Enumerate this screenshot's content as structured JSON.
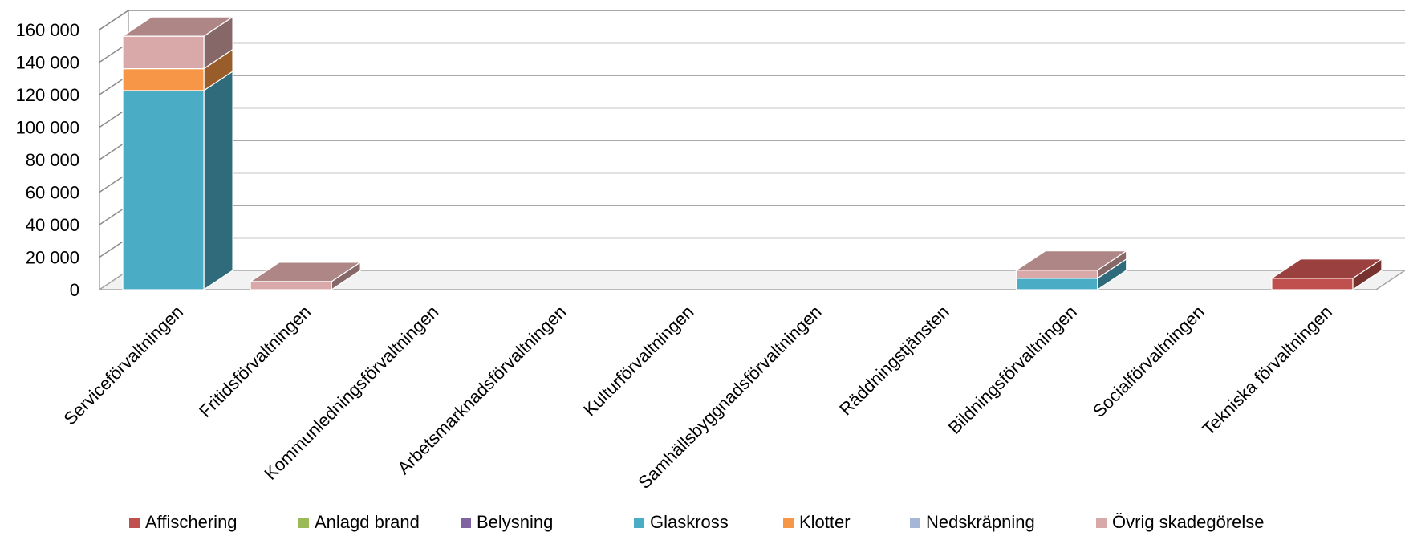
{
  "chart_data": {
    "type": "bar",
    "stacked": true,
    "three_d": true,
    "ylim": [
      0,
      160000
    ],
    "y_ticks": [
      "0",
      "20 000",
      "40 000",
      "60 000",
      "80 000",
      "100 000",
      "120 000",
      "140 000",
      "160 000"
    ],
    "grid": true,
    "legend_position": "bottom",
    "categories": [
      "Serviceförvaltningen",
      "Fritidsförvaltningen",
      "Kommunledningsförvaltningen",
      "Arbetsmarknadsförvaltningen",
      "Kulturförvaltningen",
      "Samhällsbyggnadsförvaltningen",
      "Räddningstjänsten",
      "Bildningsförvaltningen",
      "Socialförvaltningen",
      "Tekniska förvaltningen"
    ],
    "series": [
      {
        "name": "Affischering",
        "color": "#C0504D",
        "values": [
          0,
          0,
          0,
          0,
          0,
          0,
          0,
          0,
          0,
          7000
        ]
      },
      {
        "name": "Anlagd brand",
        "color": "#9BBB59",
        "values": [
          0,
          0,
          0,
          0,
          0,
          0,
          0,
          0,
          0,
          0
        ]
      },
      {
        "name": "Belysning",
        "color": "#8064A2",
        "values": [
          0,
          0,
          0,
          0,
          0,
          0,
          0,
          0,
          0,
          0
        ]
      },
      {
        "name": "Glaskross",
        "color": "#4BACC6",
        "values": [
          122500,
          0,
          0,
          0,
          0,
          0,
          0,
          7000,
          0,
          0
        ]
      },
      {
        "name": "Klotter",
        "color": "#F79646",
        "values": [
          13500,
          0,
          0,
          0,
          0,
          0,
          0,
          0,
          0,
          0
        ]
      },
      {
        "name": "Nedskräpning",
        "color": "#A5B6D7",
        "values": [
          0,
          0,
          0,
          0,
          0,
          0,
          0,
          0,
          0,
          0
        ]
      },
      {
        "name": "Övrig skadegörelse",
        "color": "#D9A8A8",
        "values": [
          20000,
          5000,
          0,
          0,
          0,
          0,
          0,
          5000,
          0,
          0
        ]
      }
    ]
  }
}
